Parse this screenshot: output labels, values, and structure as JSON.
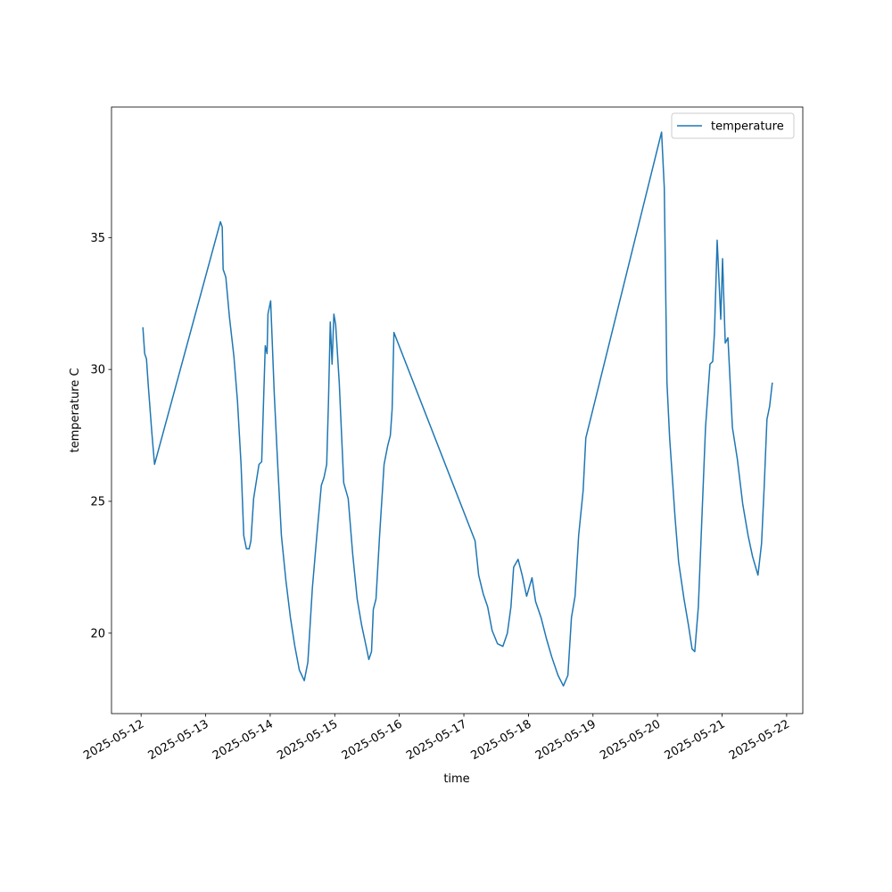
{
  "chart_data": {
    "type": "line",
    "xlabel": "time",
    "ylabel": "temperature C",
    "x": [
      "2025-05-12T00:40",
      "2025-05-12T01:20",
      "2025-05-12T02:00",
      "2025-05-12T02:40",
      "2025-05-12T04:00",
      "2025-05-12T05:00",
      "2025-05-13T05:30",
      "2025-05-13T06:10",
      "2025-05-13T06:30",
      "2025-05-13T07:30",
      "2025-05-13T08:50",
      "2025-05-13T10:30",
      "2025-05-13T11:50",
      "2025-05-13T13:10",
      "2025-05-13T14:10",
      "2025-05-13T15:10",
      "2025-05-13T16:10",
      "2025-05-13T16:50",
      "2025-05-13T17:50",
      "2025-05-13T19:50",
      "2025-05-13T20:50",
      "2025-05-13T22:10",
      "2025-05-13T22:50",
      "2025-05-13T23:10",
      "2025-05-14T00:10",
      "2025-05-14T01:30",
      "2025-05-14T02:50",
      "2025-05-14T04:10",
      "2025-05-14T05:50",
      "2025-05-14T07:30",
      "2025-05-14T09:10",
      "2025-05-14T10:50",
      "2025-05-14T12:40",
      "2025-05-14T14:00",
      "2025-05-14T15:40",
      "2025-05-14T17:20",
      "2025-05-14T19:00",
      "2025-05-14T20:00",
      "2025-05-14T21:00",
      "2025-05-14T21:40",
      "2025-05-14T22:20",
      "2025-05-14T23:00",
      "2025-05-14T23:40",
      "2025-05-15T00:20",
      "2025-05-15T01:40",
      "2025-05-15T03:20",
      "2025-05-15T05:00",
      "2025-05-15T06:40",
      "2025-05-15T08:20",
      "2025-05-15T10:00",
      "2025-05-15T11:40",
      "2025-05-15T12:40",
      "2025-05-15T13:40",
      "2025-05-15T14:20",
      "2025-05-15T15:20",
      "2025-05-15T16:40",
      "2025-05-15T18:20",
      "2025-05-15T19:40",
      "2025-05-15T20:40",
      "2025-05-15T21:20",
      "2025-05-15T22:00",
      "2025-05-17T04:10",
      "2025-05-17T05:30",
      "2025-05-17T07:10",
      "2025-05-17T08:50",
      "2025-05-17T10:30",
      "2025-05-17T12:30",
      "2025-05-17T14:30",
      "2025-05-17T16:10",
      "2025-05-17T17:30",
      "2025-05-17T18:30",
      "2025-05-17T20:10",
      "2025-05-17T21:40",
      "2025-05-17T23:20",
      "2025-05-18T01:20",
      "2025-05-18T02:40",
      "2025-05-18T04:40",
      "2025-05-18T06:40",
      "2025-05-18T08:40",
      "2025-05-18T11:00",
      "2025-05-18T13:00",
      "2025-05-18T14:40",
      "2025-05-18T16:00",
      "2025-05-18T17:20",
      "2025-05-18T18:40",
      "2025-05-18T20:20",
      "2025-05-18T21:20",
      "2025-05-20T01:30",
      "2025-05-20T02:30",
      "2025-05-20T03:30",
      "2025-05-20T04:30",
      "2025-05-20T06:30",
      "2025-05-20T07:50",
      "2025-05-20T09:50",
      "2025-05-20T11:30",
      "2025-05-20T12:50",
      "2025-05-20T13:50",
      "2025-05-20T15:10",
      "2025-05-20T16:30",
      "2025-05-20T17:50",
      "2025-05-20T19:30",
      "2025-05-20T20:30",
      "2025-05-20T21:10",
      "2025-05-20T22:10",
      "2025-05-20T23:30",
      "2025-05-21T00:10",
      "2025-05-21T01:10",
      "2025-05-21T02:10",
      "2025-05-21T03:50",
      "2025-05-21T05:40",
      "2025-05-21T07:40",
      "2025-05-21T09:40",
      "2025-05-21T11:20",
      "2025-05-21T13:20",
      "2025-05-21T14:40",
      "2025-05-21T15:40",
      "2025-05-21T16:40",
      "2025-05-21T17:40",
      "2025-05-21T18:40"
    ],
    "series": [
      {
        "name": "temperature",
        "color": "#1f77b4",
        "values": [
          31.6,
          30.6,
          30.4,
          29.4,
          27.6,
          26.4,
          35.6,
          35.4,
          33.8,
          33.5,
          32.0,
          30.5,
          28.8,
          26.4,
          23.7,
          23.2,
          23.2,
          23.5,
          25.1,
          26.4,
          26.5,
          30.9,
          30.6,
          32.1,
          32.6,
          29.1,
          26.3,
          23.7,
          22.0,
          20.6,
          19.5,
          18.6,
          18.2,
          18.9,
          21.7,
          23.7,
          25.6,
          25.9,
          26.4,
          28.8,
          31.8,
          30.2,
          32.1,
          31.7,
          29.5,
          25.7,
          25.1,
          23.0,
          21.3,
          20.3,
          19.5,
          19.0,
          19.3,
          20.9,
          21.3,
          23.7,
          26.4,
          27.1,
          27.5,
          28.5,
          31.4,
          23.5,
          22.2,
          21.5,
          21.0,
          20.1,
          19.6,
          19.5,
          20.0,
          21.0,
          22.5,
          22.8,
          22.2,
          21.4,
          22.1,
          21.2,
          20.6,
          19.8,
          19.1,
          18.4,
          18.0,
          18.4,
          20.6,
          21.4,
          23.7,
          25.4,
          27.4,
          39.0,
          36.9,
          29.5,
          27.4,
          24.4,
          22.7,
          21.3,
          20.3,
          19.4,
          19.3,
          21.0,
          24.4,
          27.8,
          30.2,
          30.3,
          31.4,
          34.9,
          31.9,
          34.2,
          31.0,
          31.2,
          27.8,
          26.6,
          24.9,
          23.7,
          22.9,
          22.2,
          23.4,
          25.6,
          28.1,
          28.6,
          29.5
        ]
      }
    ],
    "xlim": [
      "2025-05-11T13:00",
      "2025-05-22T06:00"
    ],
    "xticks": [
      "2025-05-12",
      "2025-05-13",
      "2025-05-14",
      "2025-05-15",
      "2025-05-16",
      "2025-05-17",
      "2025-05-18",
      "2025-05-19",
      "2025-05-20",
      "2025-05-21",
      "2025-05-22"
    ],
    "ylim": [
      16.95,
      39.95
    ],
    "yticks": [
      20,
      25,
      30,
      35
    ],
    "legend": "upper right"
  }
}
